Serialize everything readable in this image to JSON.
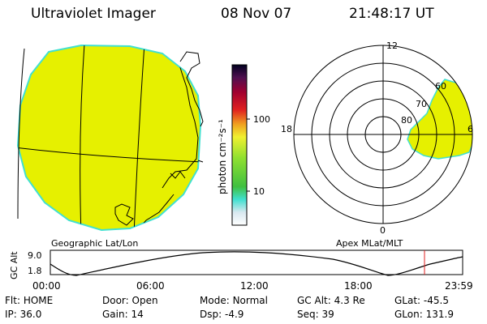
{
  "header": {
    "instrument": "Ultraviolet Imager",
    "date": "08 Nov 07",
    "time": "21:48:17 UT"
  },
  "colorbar": {
    "unit_label": "photon cm⁻²s⁻¹",
    "tick_labels": [
      "100",
      "10"
    ]
  },
  "left_panel": {
    "label": "Geographic Lat/Lon",
    "fill_color": "#e6f000",
    "limb_color": "#40e0d0"
  },
  "right_panel": {
    "label": "Apex  MLat/MLT",
    "mlt_labels": {
      "top": "12",
      "left": "18",
      "right": "6",
      "bottom": "0"
    },
    "mlat_labels": [
      "80",
      "70",
      "60"
    ]
  },
  "altitude_plot": {
    "ylabel": "GC Alt",
    "yticks": [
      "9.0",
      "1.8"
    ],
    "xticks": [
      "00:00",
      "06:00",
      "12:00",
      "18:00",
      "23:59"
    ],
    "marker_color": "#e02020"
  },
  "status": {
    "row1": [
      {
        "label": "Flt:",
        "value": "HOME"
      },
      {
        "label": "Door:",
        "value": "Open"
      },
      {
        "label": "Mode:",
        "value": "Normal"
      },
      {
        "label": "GC Alt:",
        "value": "4.3 Re"
      },
      {
        "label": "GLat:",
        "value": "-45.5"
      }
    ],
    "row2": [
      {
        "label": "IP:",
        "value": "36.0"
      },
      {
        "label": "Gain:",
        "value": "14"
      },
      {
        "label": "Dsp:",
        "value": "-4.9"
      },
      {
        "label": "Seq:",
        "value": "39"
      },
      {
        "label": "GLon:",
        "value": "131.9"
      }
    ]
  }
}
